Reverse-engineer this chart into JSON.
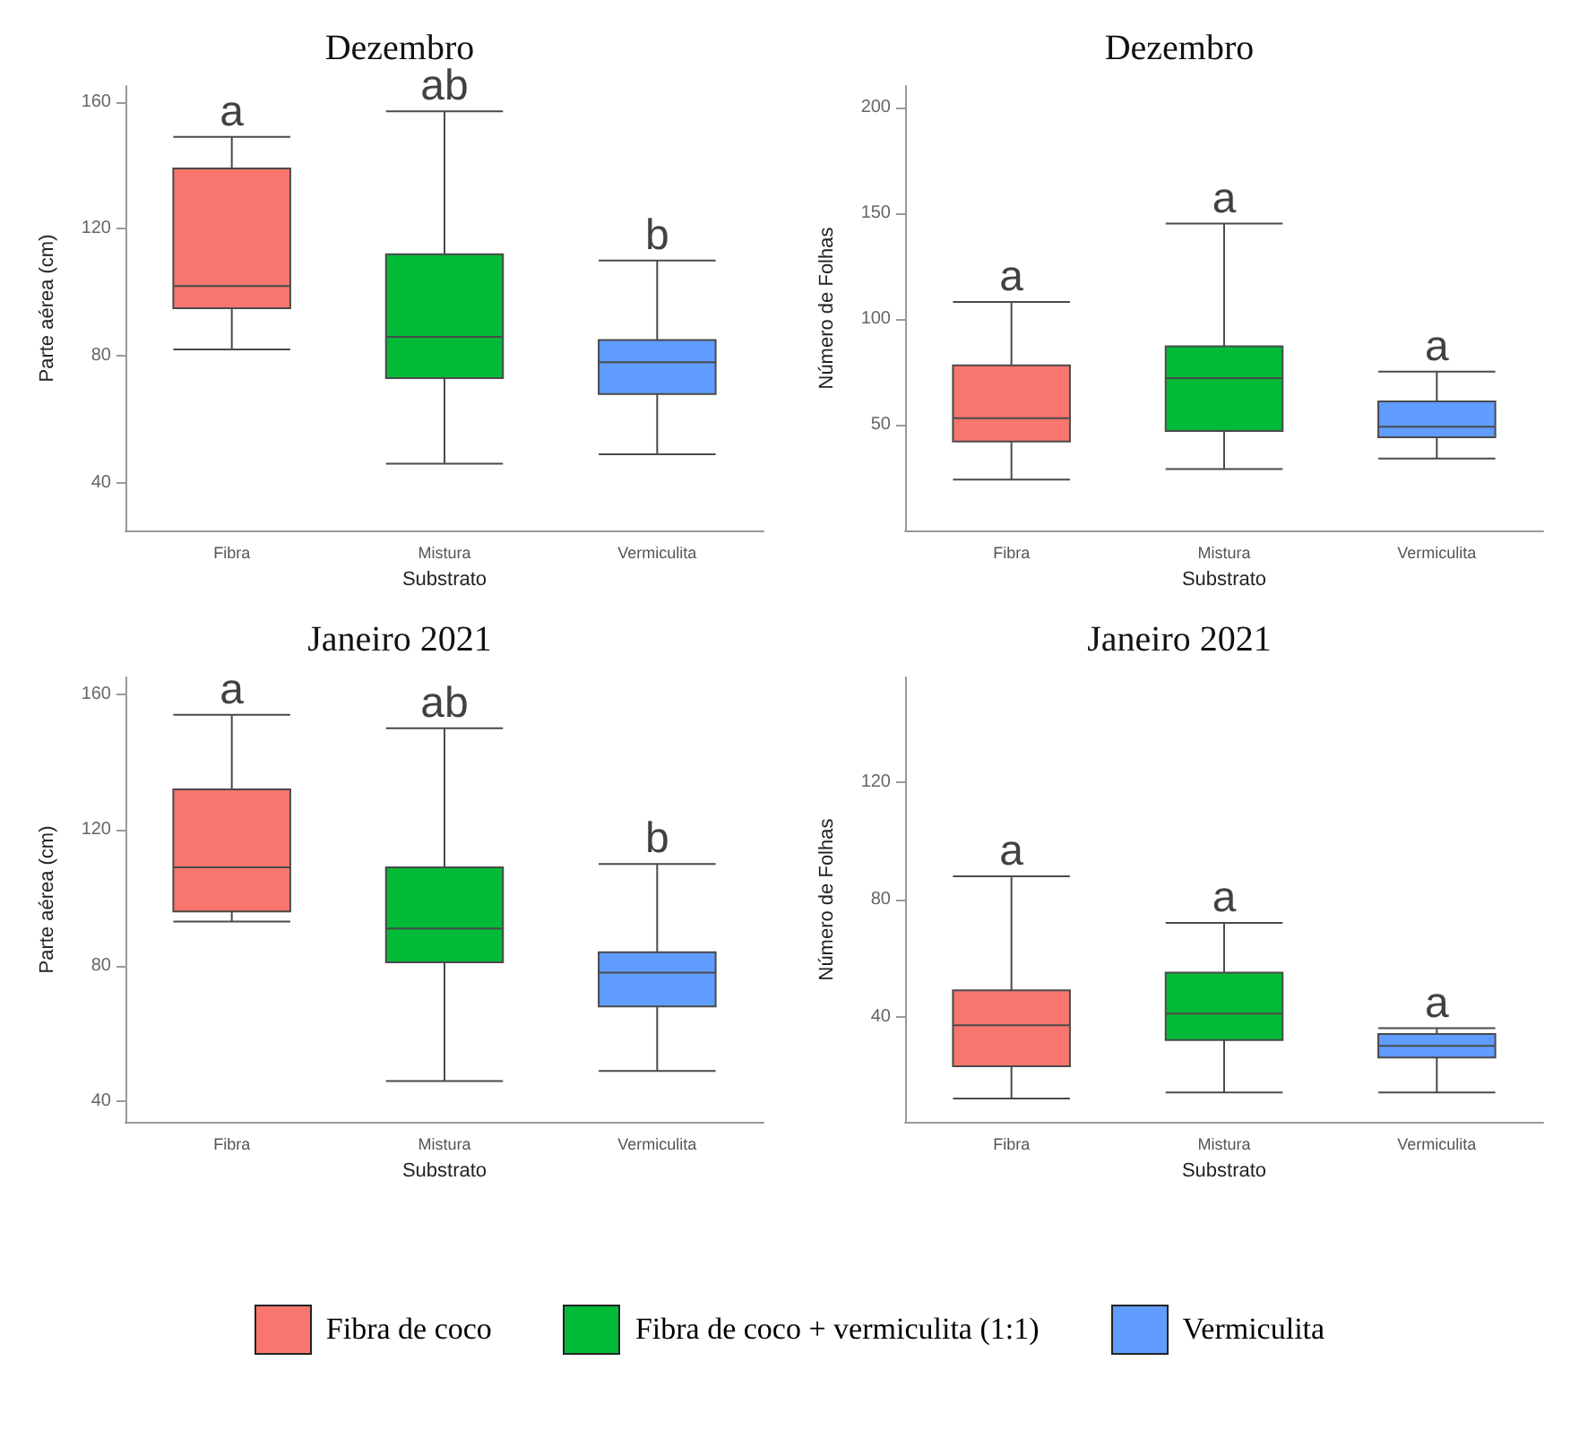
{
  "chart_data": [
    {
      "type": "box",
      "title": "Dezembro",
      "xlabel": "Substrato",
      "ylabel": "Parte aérea (cm)",
      "categories": [
        "Fibra",
        "Mistura",
        "Vermiculita"
      ],
      "ylim": [
        25,
        165
      ],
      "yticks": [
        40,
        80,
        120,
        160
      ],
      "grid": false,
      "legend": false,
      "series": [
        {
          "color": "#f8766d",
          "boxes": [
            {
              "low": 82,
              "q1": 95,
              "median": 102,
              "q3": 139,
              "high": 149
            },
            null,
            null
          ]
        },
        {
          "color": "#00ba38",
          "boxes": [
            null,
            {
              "low": 46,
              "q1": 73,
              "median": 86,
              "q3": 112,
              "high": 157
            },
            null
          ]
        },
        {
          "color": "#619cff",
          "boxes": [
            null,
            null,
            {
              "low": 49,
              "q1": 68,
              "median": 78,
              "q3": 85,
              "high": 110
            }
          ]
        }
      ],
      "annotations": [
        {
          "text": "a",
          "x": "Fibra",
          "y": 149
        },
        {
          "text": "ab",
          "x": "Mistura",
          "y": 157
        },
        {
          "text": "b",
          "x": "Vermiculita",
          "y": 110
        }
      ]
    },
    {
      "type": "box",
      "title": "Dezembro",
      "xlabel": "Substrato",
      "ylabel": "Número de Folhas",
      "categories": [
        "Fibra",
        "Mistura",
        "Vermiculita"
      ],
      "ylim": [
        0,
        210
      ],
      "yticks": [
        50,
        100,
        150,
        200
      ],
      "grid": false,
      "legend": false,
      "series": [
        {
          "color": "#f8766d",
          "boxes": [
            {
              "low": 24,
              "q1": 42,
              "median": 53,
              "q3": 78,
              "high": 108
            },
            null,
            null
          ]
        },
        {
          "color": "#00ba38",
          "boxes": [
            null,
            {
              "low": 29,
              "q1": 47,
              "median": 72,
              "q3": 87,
              "high": 145
            },
            null
          ]
        },
        {
          "color": "#619cff",
          "boxes": [
            null,
            null,
            {
              "low": 34,
              "q1": 44,
              "median": 49,
              "q3": 61,
              "high": 75
            }
          ]
        }
      ],
      "annotations": [
        {
          "text": "a",
          "x": "Fibra",
          "y": 108
        },
        {
          "text": "a",
          "x": "Mistura",
          "y": 145
        },
        {
          "text": "a",
          "x": "Vermiculita",
          "y": 75
        }
      ]
    },
    {
      "type": "box",
      "title": "Janeiro 2021",
      "xlabel": "Substrato",
      "ylabel": "Parte aérea (cm)",
      "categories": [
        "Fibra",
        "Mistura",
        "Vermiculita"
      ],
      "ylim": [
        34,
        165
      ],
      "yticks": [
        40,
        80,
        120,
        160
      ],
      "grid": false,
      "legend": false,
      "series": [
        {
          "color": "#f8766d",
          "boxes": [
            {
              "low": 93,
              "q1": 96,
              "median": 109,
              "q3": 132,
              "high": 154
            },
            null,
            null
          ]
        },
        {
          "color": "#00ba38",
          "boxes": [
            null,
            {
              "low": 46,
              "q1": 81,
              "median": 91,
              "q3": 109,
              "high": 150
            },
            null
          ]
        },
        {
          "color": "#619cff",
          "boxes": [
            null,
            null,
            {
              "low": 49,
              "q1": 68,
              "median": 78,
              "q3": 84,
              "high": 110
            }
          ]
        }
      ],
      "annotations": [
        {
          "text": "a",
          "x": "Fibra",
          "y": 154
        },
        {
          "text": "ab",
          "x": "Mistura",
          "y": 150
        },
        {
          "text": "b",
          "x": "Vermiculita",
          "y": 110
        }
      ]
    },
    {
      "type": "box",
      "title": "Janeiro 2021",
      "xlabel": "Substrato",
      "ylabel": "Número de Folhas",
      "categories": [
        "Fibra",
        "Mistura",
        "Vermiculita"
      ],
      "ylim": [
        4,
        156
      ],
      "yticks": [
        40,
        80,
        120
      ],
      "grid": false,
      "legend": "bottom",
      "series": [
        {
          "name": "Fibra de coco",
          "color": "#f8766d",
          "boxes": [
            {
              "low": 12,
              "q1": 23,
              "median": 37,
              "q3": 49,
              "high": 88
            },
            null,
            null
          ]
        },
        {
          "name": "Fibra de coco + vermiculita (1:1)",
          "color": "#00ba38",
          "boxes": [
            null,
            {
              "low": 14,
              "q1": 32,
              "median": 41,
              "q3": 55,
              "high": 72
            },
            null
          ]
        },
        {
          "name": "Vermiculita",
          "color": "#619cff",
          "boxes": [
            null,
            null,
            {
              "low": 14,
              "q1": 26,
              "median": 30,
              "q3": 34,
              "high": 36
            }
          ]
        }
      ],
      "annotations": [
        {
          "text": "a",
          "x": "Fibra",
          "y": 88
        },
        {
          "text": "a",
          "x": "Mistura",
          "y": 72
        },
        {
          "text": "a",
          "x": "Vermiculita",
          "y": 36
        }
      ]
    }
  ]
}
